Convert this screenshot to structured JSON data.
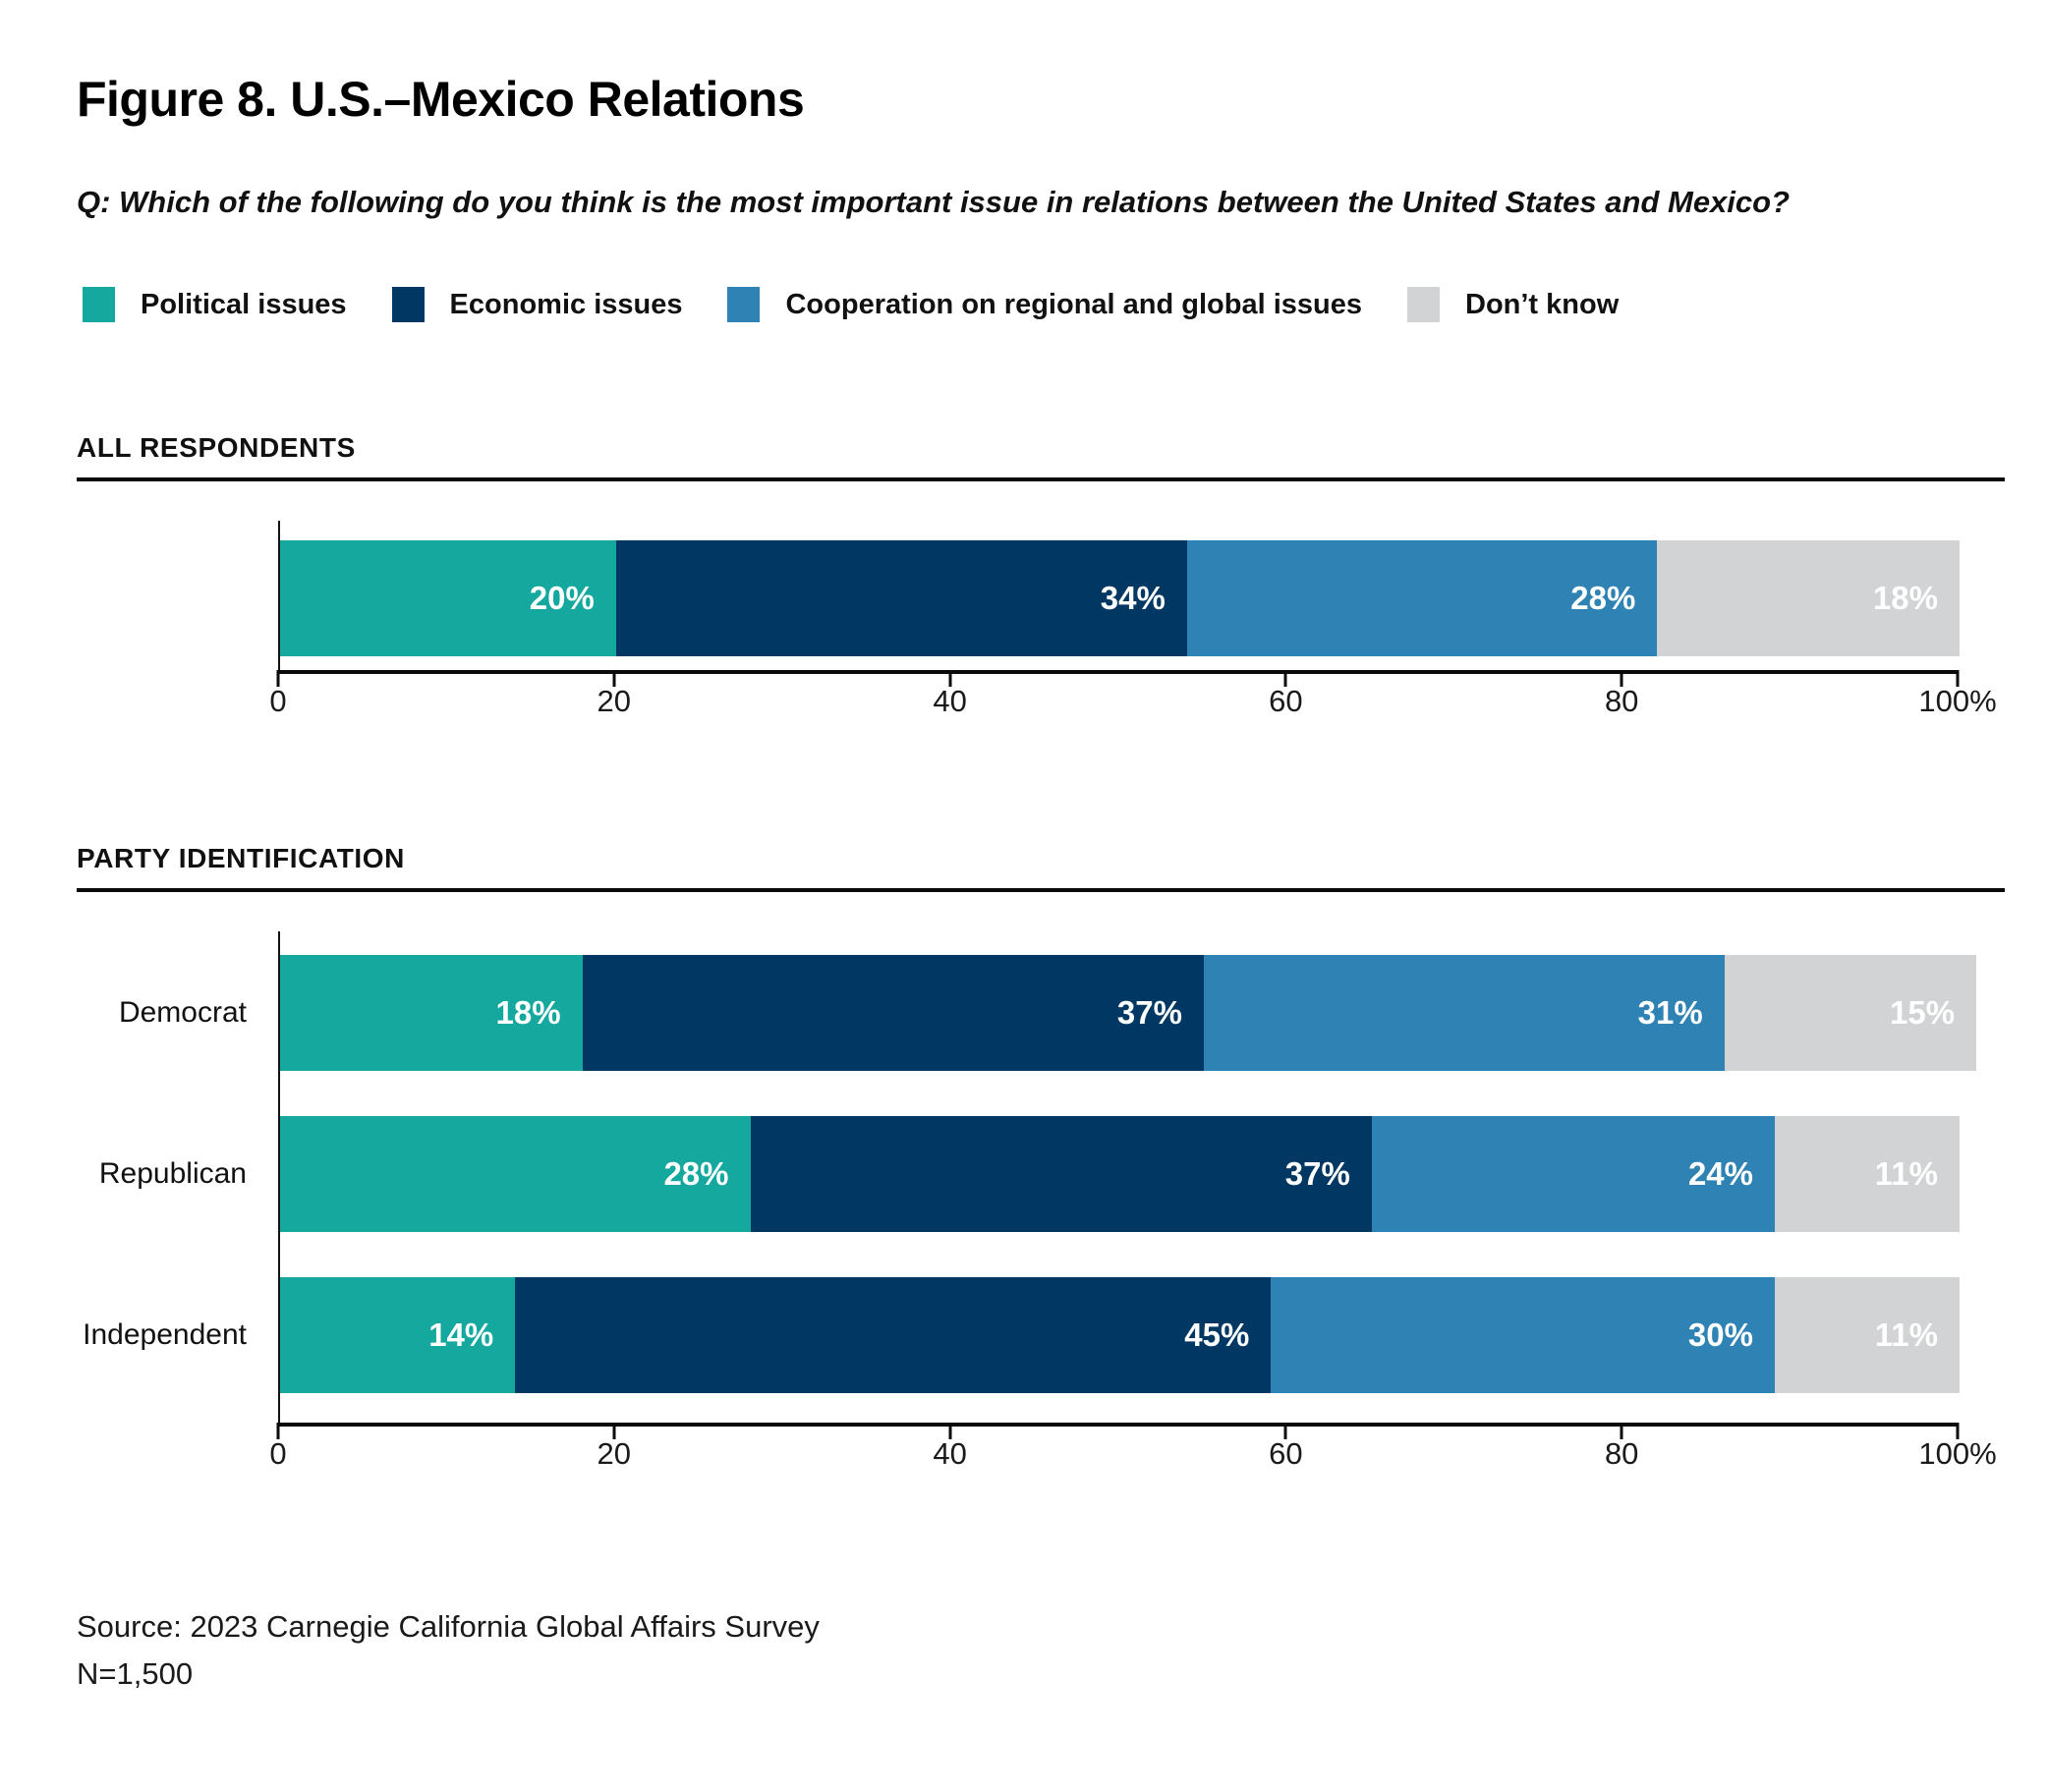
{
  "title": "Figure 8. U.S.–Mexico Relations",
  "question": "Q: Which of the following do you think is the most important issue in relations between the United States and Mexico?",
  "legend": [
    {
      "label": "Political issues",
      "color": "#14A89E"
    },
    {
      "label": "Economic issues",
      "color": "#003863"
    },
    {
      "label": "Cooperation on regional and global issues",
      "color": "#2E83B4"
    },
    {
      "label": "Don’t know",
      "color": "#D1D3D4"
    }
  ],
  "sections": [
    {
      "heading": "ALL RESPONDENTS"
    },
    {
      "heading": "PARTY IDENTIFICATION"
    }
  ],
  "chart_data": [
    {
      "type": "bar",
      "variant": "horizontal-stacked",
      "section": "ALL RESPONDENTS",
      "categories": [
        "All respondents"
      ],
      "show_category_labels": false,
      "series": [
        {
          "name": "Political issues",
          "color": "#14A89E",
          "values": [
            20
          ]
        },
        {
          "name": "Economic issues",
          "color": "#003863",
          "values": [
            34
          ]
        },
        {
          "name": "Cooperation on regional and global issues",
          "color": "#2E83B4",
          "values": [
            28
          ]
        },
        {
          "name": "Don’t know",
          "color": "#D1D3D4",
          "values": [
            18
          ]
        }
      ],
      "xlim": [
        0,
        100
      ],
      "xticks": [
        "0",
        "20",
        "40",
        "60",
        "80",
        "100%"
      ],
      "data_label_format": "percent",
      "grid": false,
      "legend_position": "top"
    },
    {
      "type": "bar",
      "variant": "horizontal-stacked",
      "section": "PARTY IDENTIFICATION",
      "categories": [
        "Democrat",
        "Republican",
        "Independent"
      ],
      "show_category_labels": true,
      "series": [
        {
          "name": "Political issues",
          "color": "#14A89E",
          "values": [
            18,
            28,
            14
          ]
        },
        {
          "name": "Economic issues",
          "color": "#003863",
          "values": [
            37,
            37,
            45
          ]
        },
        {
          "name": "Cooperation on regional and global issues",
          "color": "#2E83B4",
          "values": [
            31,
            24,
            30
          ]
        },
        {
          "name": "Don’t know",
          "color": "#D1D3D4",
          "values": [
            15,
            11,
            11
          ]
        }
      ],
      "xlim": [
        0,
        100
      ],
      "xticks": [
        "0",
        "20",
        "40",
        "60",
        "80",
        "100%"
      ],
      "data_label_format": "percent",
      "grid": false,
      "legend_position": "top"
    }
  ],
  "source": {
    "line1": "Source: 2023 Carnegie California Global Affairs Survey",
    "line2": "N=1,500"
  },
  "colors": {
    "teal": "#14A89E",
    "navy": "#003863",
    "blue": "#2E83B4",
    "gray": "#D1D3D4",
    "axis": "#0a0a0a",
    "text": "#000000"
  }
}
